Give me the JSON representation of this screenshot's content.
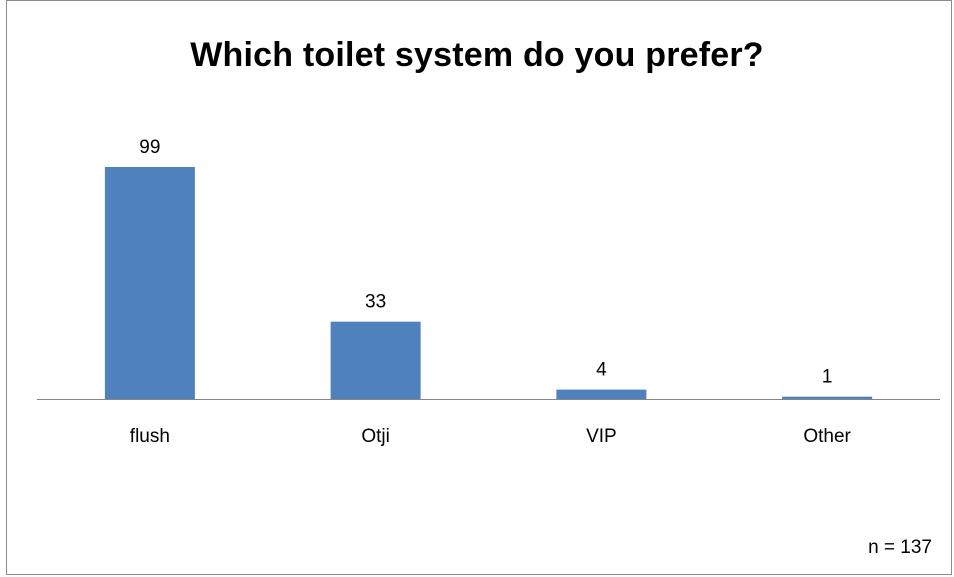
{
  "chart_data": {
    "type": "bar",
    "title": "Which toilet system do you prefer?",
    "categories": [
      "flush",
      "Otji",
      "VIP",
      "Other"
    ],
    "values": [
      99,
      33,
      4,
      1
    ],
    "data_labels": [
      "99",
      "33",
      "4",
      "1"
    ],
    "xlabel": "",
    "ylabel": "",
    "ylim": [
      0,
      99
    ],
    "grid": false,
    "legend": "none",
    "bar_color": "#4f81bd",
    "axis_color": "#868686",
    "annotation": "n = 137"
  }
}
